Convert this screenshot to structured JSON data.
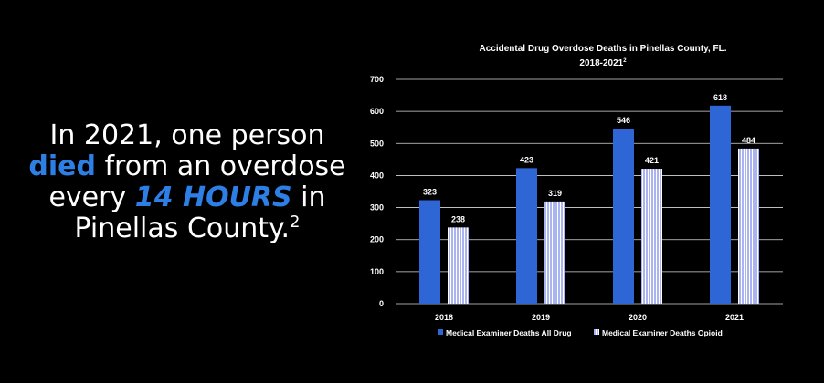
{
  "headline": {
    "part1": "In 2021, one person ",
    "highlight1": "died",
    "part2": " from an overdose every ",
    "highlight2": "14 HOURS",
    "part3": " in Pinellas County.",
    "footnote": "2"
  },
  "colors": {
    "background": "#000000",
    "accent": "#2d7fe6",
    "series_all_drug": "#2f66d6",
    "series_opioid": "#a9b4f0",
    "gridline": "#d9d9d9"
  },
  "chart_data": {
    "type": "bar",
    "title": "Accidental Drug Overdose Deaths in Pinellas County, FL.",
    "subtitle": "2018-2021",
    "subtitle_footnote": "2",
    "categories": [
      "2018",
      "2019",
      "2020",
      "2021"
    ],
    "series": [
      {
        "name": "Medical Examiner Deaths All Drug",
        "values": [
          323,
          423,
          546,
          618
        ]
      },
      {
        "name": "Medical Examiner Deaths Opioid",
        "values": [
          238,
          319,
          421,
          484
        ]
      }
    ],
    "ylim": [
      0,
      700
    ],
    "yticks": [
      0,
      100,
      200,
      300,
      400,
      500,
      600,
      700
    ],
    "grid": true,
    "legend": "bottom",
    "data_labels": true
  }
}
